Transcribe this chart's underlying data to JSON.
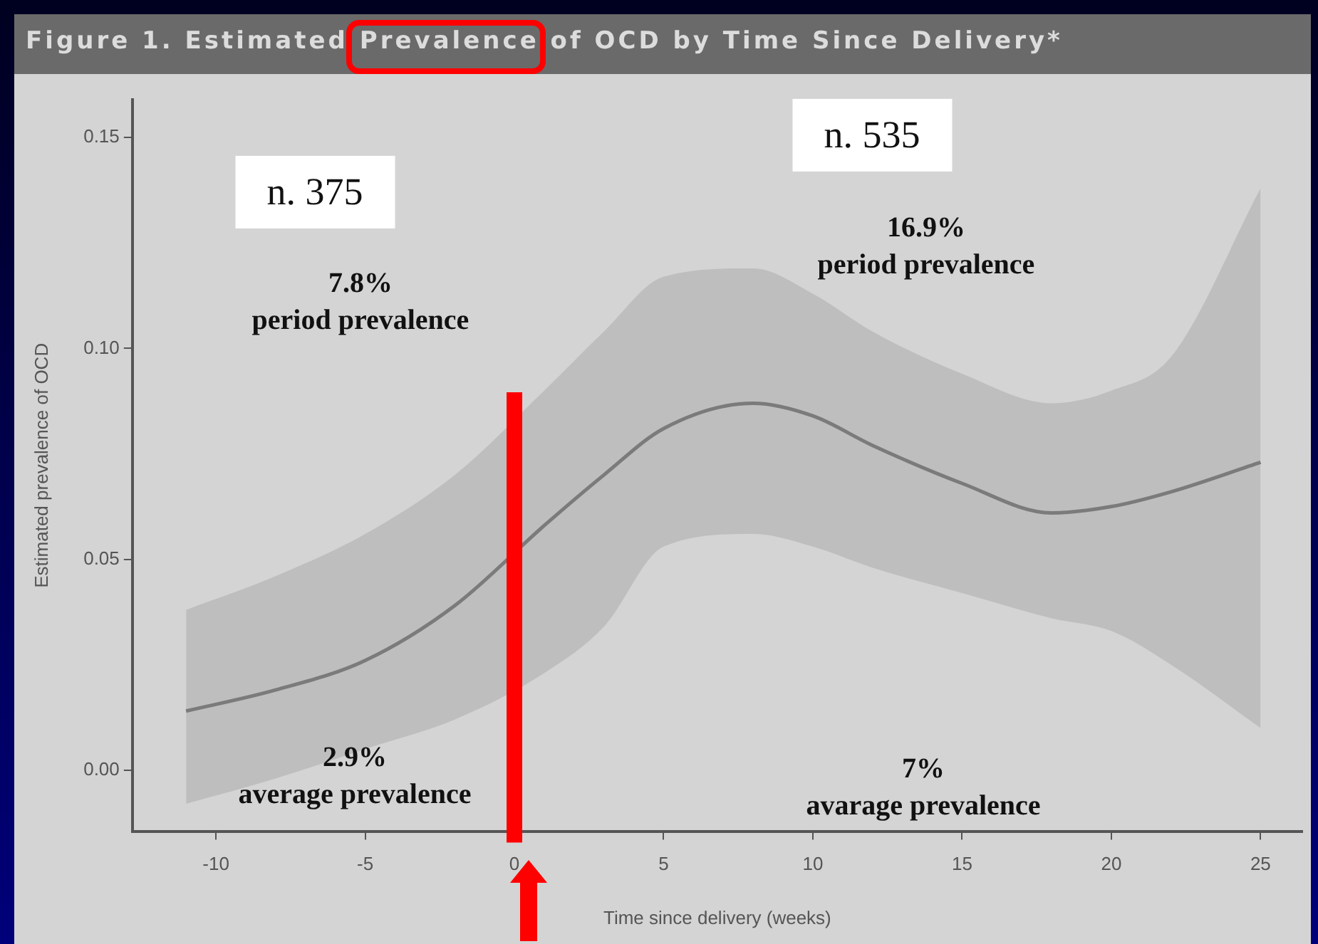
{
  "chart_data": {
    "type": "line",
    "title": "Figure 1. Estimated Prevalence of OCD by Time Since Delivery*",
    "xlabel": "Time since delivery (weeks)",
    "ylabel": "Estimated prevalence of OCD",
    "xlim": [
      -12.8,
      26.4
    ],
    "ylim": [
      -0.0145,
      0.159
    ],
    "xticks": [
      -10,
      -5,
      0,
      5,
      10,
      15,
      20,
      25
    ],
    "yticks": [
      {
        "value": 0,
        "label": "0.00"
      },
      {
        "value": 0.05,
        "label": "0.05"
      },
      {
        "value": 0.1,
        "label": "0.10"
      },
      {
        "value": 0.15,
        "label": "0.15"
      }
    ],
    "grid": false,
    "legend": false,
    "marker": "none",
    "line_style": "solid",
    "series": [
      {
        "color": "#6e6e6e",
        "x": [
          -11,
          -8,
          -5,
          -2,
          1,
          3,
          5,
          8,
          10,
          12,
          15,
          18,
          20,
          22,
          25
        ],
        "values": [
          0.014,
          0.019,
          0.026,
          0.039,
          0.058,
          0.07,
          0.081,
          0.087,
          0.084,
          0.077,
          0.068,
          0.061,
          0.0625,
          0.066,
          0.073
        ],
        "lower": [
          -0.008,
          -0.002,
          0.005,
          0.012,
          0.023,
          0.034,
          0.053,
          0.056,
          0.053,
          0.048,
          0.042,
          0.036,
          0.033,
          0.025,
          0.01
        ],
        "upper": [
          0.038,
          0.046,
          0.056,
          0.07,
          0.09,
          0.104,
          0.117,
          0.119,
          0.113,
          0.104,
          0.094,
          0.087,
          0.09,
          0.098,
          0.138
        ]
      }
    ],
    "ref_lines": [
      {
        "axis": "x",
        "value": 0,
        "color": "#ff0000"
      }
    ],
    "annotations": [
      "n. 375",
      "7.8%\nperiod prevalence",
      "2.9%\naverage prevalence",
      "n. 535",
      "16.9%\nperiod prevalence",
      "7%\navarage prevalence"
    ]
  }
}
